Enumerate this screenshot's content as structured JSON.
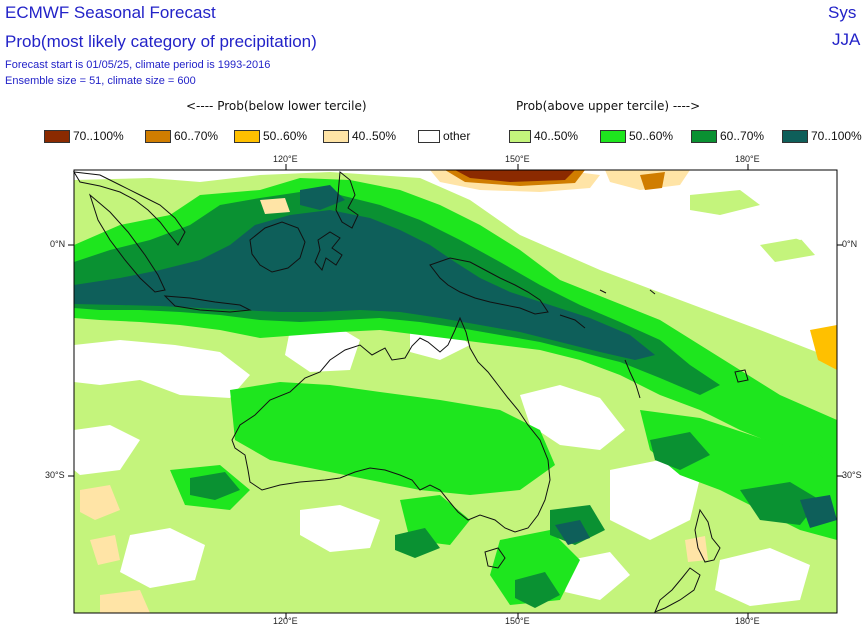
{
  "header": {
    "title": "ECMWF Seasonal Forecast",
    "subtitle": "Prob(most likely category of precipitation)",
    "info1": "Forecast start is 01/05/25, climate period is 1993-2016",
    "info2": "Ensemble size = 51, climate size = 600",
    "system_text": "Sys",
    "season_text": "JJA"
  },
  "legend": {
    "below_label": "<---- Prob(below lower tercile)",
    "above_label": "Prob(above upper tercile) ---->",
    "items": [
      {
        "label": "70..100%",
        "color": "#8b2a00"
      },
      {
        "label": "60..70%",
        "color": "#d07d00"
      },
      {
        "label": "50..60%",
        "color": "#ffc000"
      },
      {
        "label": "40..50%",
        "color": "#ffe4a6"
      },
      {
        "label": "other",
        "color": "#ffffff"
      },
      {
        "label": "40..50%",
        "color": "#c4f47c"
      },
      {
        "label": "50..60%",
        "color": "#1ee61e"
      },
      {
        "label": "60..70%",
        "color": "#0a9132"
      },
      {
        "label": "70..100%",
        "color": "#0e5f5a"
      }
    ]
  },
  "axes": {
    "lon_labels": [
      "120°E",
      "150°E",
      "180°E"
    ],
    "lat_labels": [
      "0°N",
      "30°S"
    ]
  }
}
